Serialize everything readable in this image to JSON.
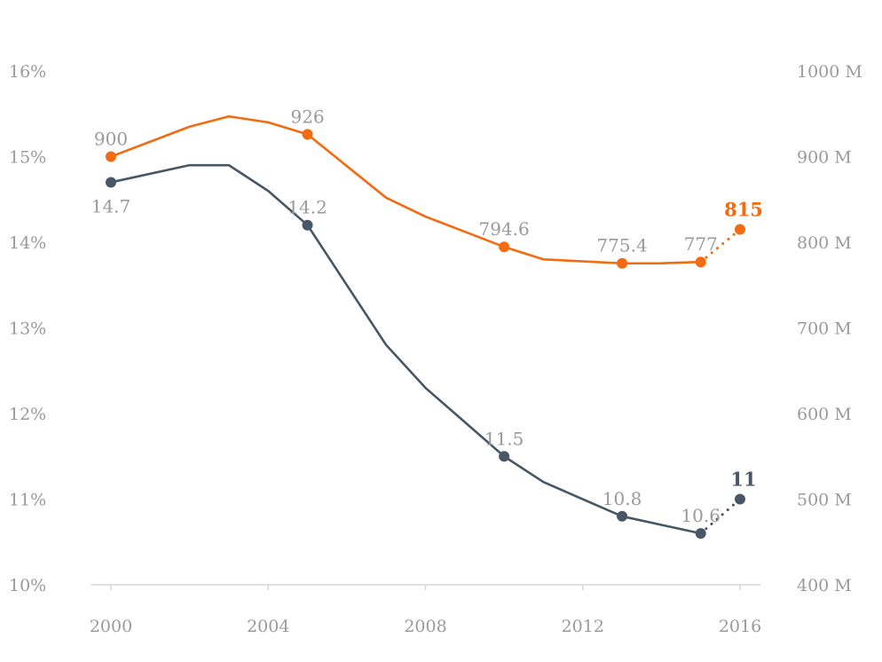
{
  "chart_data": {
    "type": "line",
    "title": "",
    "xlabel": "",
    "x_ticks": [
      "2000",
      "2004",
      "2008",
      "2012",
      "2016"
    ],
    "xlim": [
      2000,
      2016
    ],
    "left_axis": {
      "ylim": [
        10,
        16
      ],
      "ticks": [
        "10%",
        "11%",
        "12%",
        "13%",
        "14%",
        "15%",
        "16%"
      ]
    },
    "right_axis": {
      "ylim": [
        400,
        1000
      ],
      "ticks": [
        "400 M",
        "500 M",
        "600 M",
        "700 M",
        "800 M",
        "900 M",
        "1000 M"
      ]
    },
    "grid": false,
    "series": [
      {
        "name": "percent",
        "axis": "left",
        "color": "#475766",
        "x": [
          2000,
          2002,
          2003,
          2004,
          2005,
          2007,
          2008,
          2010,
          2011,
          2013,
          2015
        ],
        "y": [
          14.7,
          14.9,
          14.9,
          14.6,
          14.2,
          12.8,
          12.3,
          11.5,
          11.2,
          10.8,
          10.6
        ],
        "markers": [
          {
            "x": 2000,
            "y": 14.7,
            "label": "14.7",
            "pos": "below"
          },
          {
            "x": 2005,
            "y": 14.2,
            "label": "14.2",
            "pos": "above"
          },
          {
            "x": 2010,
            "y": 11.5,
            "label": "11.5",
            "pos": "above"
          },
          {
            "x": 2013,
            "y": 10.8,
            "label": "10.8",
            "pos": "above"
          },
          {
            "x": 2015,
            "y": 10.6,
            "label": "10.6",
            "pos": "above"
          }
        ],
        "projection": {
          "x": 2016,
          "y": 11,
          "label": "11"
        }
      },
      {
        "name": "millions",
        "axis": "right",
        "color": "#f26b10",
        "x": [
          2000,
          2002,
          2003,
          2004,
          2005,
          2007,
          2008,
          2010,
          2011,
          2013,
          2014,
          2015
        ],
        "y": [
          900,
          935,
          947,
          940,
          926,
          852,
          830,
          794.6,
          780,
          775.4,
          775.5,
          777
        ],
        "markers": [
          {
            "x": 2000,
            "y": 900,
            "label": "900",
            "pos": "above"
          },
          {
            "x": 2005,
            "y": 926,
            "label": "926",
            "pos": "above"
          },
          {
            "x": 2010,
            "y": 794.6,
            "label": "794.6",
            "pos": "above"
          },
          {
            "x": 2013,
            "y": 775.4,
            "label": "775.4",
            "pos": "above"
          },
          {
            "x": 2015,
            "y": 777,
            "label": "777",
            "pos": "above"
          }
        ],
        "projection": {
          "x": 2016,
          "y": 815,
          "label": "815"
        }
      }
    ]
  }
}
